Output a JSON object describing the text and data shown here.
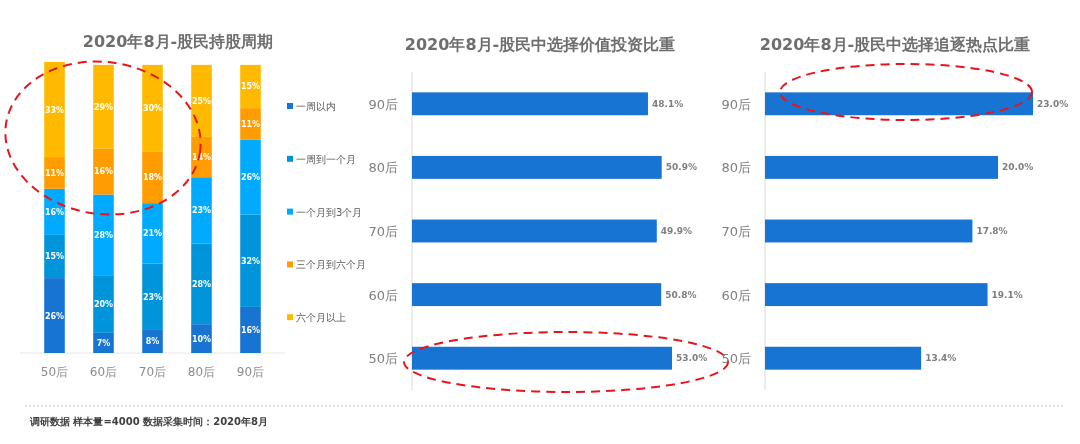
{
  "chart_data": [
    {
      "type": "bar",
      "title": "2020年8月-股民持股周期",
      "categories": [
        "50后",
        "60后",
        "70后",
        "80后",
        "90后"
      ],
      "stacked": true,
      "legend": "right",
      "series": [
        {
          "name": "一周以内",
          "color": "#1874d2",
          "values": [
            26,
            7,
            8,
            10,
            16
          ],
          "value_labels": [
            "26%",
            "7%",
            "8%",
            "10%",
            "16%"
          ]
        },
        {
          "name": "一周到一个月",
          "color": "#0095db",
          "values": [
            15,
            20,
            23,
            28,
            32
          ],
          "value_labels": [
            "15%",
            "20%",
            "23%",
            "28%",
            "32%"
          ]
        },
        {
          "name": "一个月到3个月",
          "color": "#00aaff",
          "values": [
            16,
            28,
            21,
            23,
            26
          ],
          "value_labels": [
            "16%",
            "28%",
            "21%",
            "23%",
            "26%"
          ]
        },
        {
          "name": "三个月到六个月",
          "color": "#ff9d00",
          "values": [
            11,
            16,
            18,
            14,
            11
          ],
          "value_labels": [
            "11%",
            "16%",
            "18%",
            "14%",
            "11%"
          ]
        },
        {
          "name": "六个月以上",
          "color": "#ffba00",
          "values": [
            33,
            29,
            30,
            25,
            15
          ],
          "value_labels": [
            "33%",
            "29%",
            "30%",
            "25%",
            "15%"
          ]
        }
      ],
      "annotations": [
        "调研数据 样本量=4000  数据采集时间：2020年8月"
      ]
    },
    {
      "type": "bar",
      "orientation": "horizontal",
      "title": "2020年8月-股民中选择价值投资比重",
      "categories": [
        "90后",
        "80后",
        "70后",
        "60后",
        "50后"
      ],
      "color": "#1874d2",
      "values": [
        48.1,
        50.9,
        49.9,
        50.8,
        53.0
      ],
      "value_labels": [
        "48.1%",
        "50.9%",
        "49.9%",
        "50.8%",
        "53.0%"
      ]
    },
    {
      "type": "bar",
      "orientation": "horizontal",
      "title": "2020年8月-股民中选择追逐热点比重",
      "categories": [
        "90后",
        "80后",
        "70后",
        "60后",
        "50后"
      ],
      "color": "#1874d2",
      "values": [
        23.0,
        20.0,
        17.8,
        19.1,
        13.4
      ],
      "value_labels": [
        "23.0%",
        "20.0%",
        "17.8%",
        "19.1%",
        "13.4%"
      ]
    }
  ]
}
